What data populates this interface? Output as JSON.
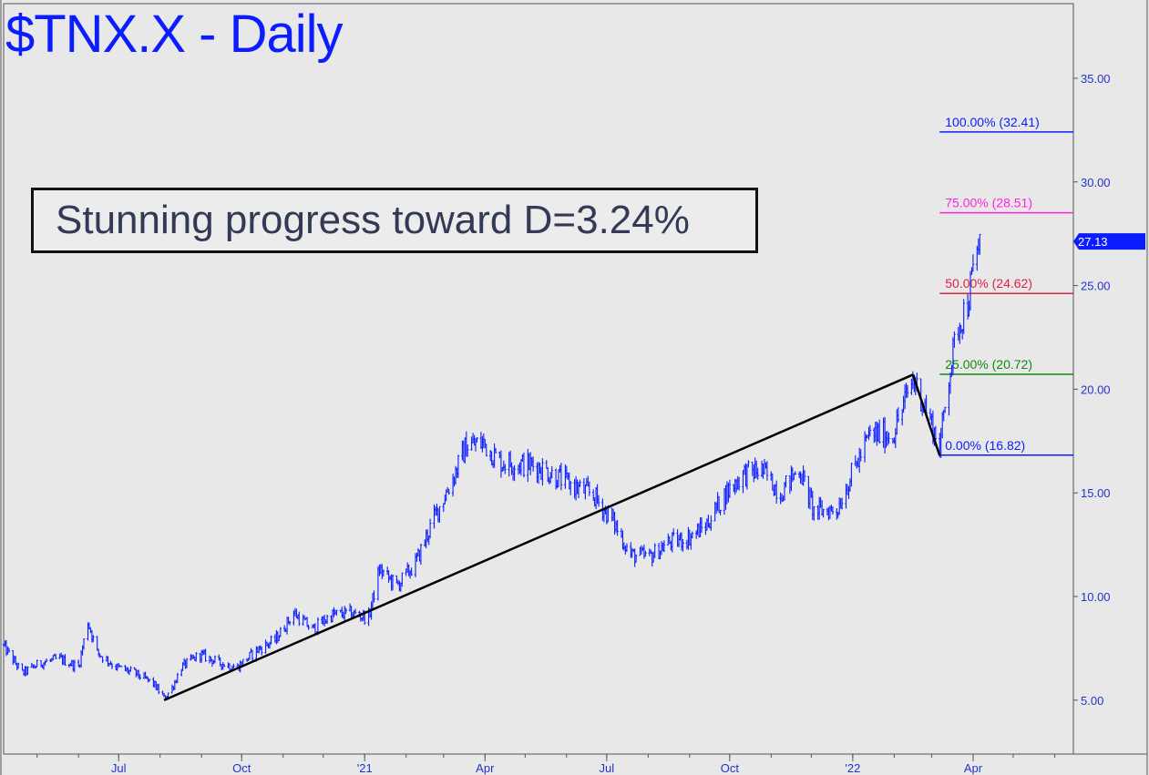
{
  "title": "$TNX.X - Daily",
  "annotation": "Stunning progress toward D=3.24%",
  "colors": {
    "background": "#e8e8e8",
    "price": "#0b1cff",
    "trendline": "#000000",
    "fib_100": "#0b1cff",
    "fib_75": "#ff22dd",
    "fib_50": "#dd2244",
    "fib_25": "#118811",
    "fib_0": "#0b1cff",
    "last_price_tag": "#0b1cff"
  },
  "chart_data": {
    "type": "line",
    "title": "$TNX.X - Daily",
    "xlabel": "",
    "ylabel": "",
    "x_axis": {
      "start": "2020-04-06",
      "end": "2022-06-15",
      "tick_labels": [
        {
          "label": "Jul",
          "date": "2020-07-01"
        },
        {
          "label": "Oct",
          "date": "2020-10-01"
        },
        {
          "label": "'21",
          "date": "2021-01-01"
        },
        {
          "label": "Apr",
          "date": "2021-04-01"
        },
        {
          "label": "Jul",
          "date": "2021-07-01"
        },
        {
          "label": "Oct",
          "date": "2021-10-01"
        },
        {
          "label": "'22",
          "date": "2022-01-01"
        },
        {
          "label": "Apr",
          "date": "2022-04-01"
        }
      ]
    },
    "y_axis": {
      "position": "right",
      "ylim": [
        2.4,
        38.6
      ],
      "ticks": [
        "5.00",
        "10.00",
        "15.00",
        "20.00",
        "25.00",
        "30.00",
        "35.00"
      ]
    },
    "grid": false,
    "last_price": {
      "value": 27.13,
      "label": "27.13"
    },
    "series": [
      {
        "points": [
          [
            "2020-04-06",
            7.6
          ],
          [
            "2020-04-20",
            6.3
          ],
          [
            "2020-05-04",
            6.8
          ],
          [
            "2020-05-18",
            7.0
          ],
          [
            "2020-06-01",
            6.6
          ],
          [
            "2020-06-08",
            8.8
          ],
          [
            "2020-06-15",
            7.3
          ],
          [
            "2020-06-29",
            6.6
          ],
          [
            "2020-07-13",
            6.3
          ],
          [
            "2020-07-27",
            5.8
          ],
          [
            "2020-08-04",
            5.1
          ],
          [
            "2020-08-10",
            5.6
          ],
          [
            "2020-08-17",
            6.6
          ],
          [
            "2020-08-31",
            7.2
          ],
          [
            "2020-09-14",
            6.8
          ],
          [
            "2020-09-28",
            6.6
          ],
          [
            "2020-10-12",
            7.4
          ],
          [
            "2020-10-26",
            7.9
          ],
          [
            "2020-11-09",
            9.2
          ],
          [
            "2020-11-23",
            8.4
          ],
          [
            "2020-12-07",
            9.1
          ],
          [
            "2020-12-21",
            9.2
          ],
          [
            "2021-01-04",
            9.0
          ],
          [
            "2021-01-12",
            11.3
          ],
          [
            "2021-01-25",
            10.5
          ],
          [
            "2021-02-08",
            11.6
          ],
          [
            "2021-02-22",
            13.8
          ],
          [
            "2021-03-08",
            15.7
          ],
          [
            "2021-03-18",
            17.3
          ],
          [
            "2021-03-31",
            17.4
          ],
          [
            "2021-04-12",
            16.5
          ],
          [
            "2021-04-26",
            16.4
          ],
          [
            "2021-05-10",
            16.3
          ],
          [
            "2021-05-24",
            15.8
          ],
          [
            "2021-06-07",
            15.3
          ],
          [
            "2021-06-21",
            14.9
          ],
          [
            "2021-07-06",
            13.6
          ],
          [
            "2021-07-19",
            12.0
          ],
          [
            "2021-08-02",
            11.9
          ],
          [
            "2021-08-16",
            12.6
          ],
          [
            "2021-08-30",
            12.8
          ],
          [
            "2021-09-13",
            13.4
          ],
          [
            "2021-09-27",
            14.9
          ],
          [
            "2021-10-11",
            15.9
          ],
          [
            "2021-10-25",
            16.1
          ],
          [
            "2021-11-08",
            15.0
          ],
          [
            "2021-11-22",
            16.2
          ],
          [
            "2021-12-03",
            14.1
          ],
          [
            "2021-12-20",
            14.2
          ],
          [
            "2022-01-03",
            16.3
          ],
          [
            "2022-01-14",
            17.8
          ],
          [
            "2022-01-31",
            17.8
          ],
          [
            "2022-02-15",
            20.5
          ],
          [
            "2022-02-23",
            19.4
          ],
          [
            "2022-03-07",
            17.2
          ],
          [
            "2022-03-14",
            20.7
          ],
          [
            "2022-03-21",
            23.1
          ],
          [
            "2022-03-28",
            24.2
          ],
          [
            "2022-04-06",
            27.3
          ]
        ]
      }
    ],
    "trendlines": [
      {
        "from": [
          "2020-08-04",
          5.0
        ],
        "to": [
          "2022-02-15",
          20.7
        ]
      },
      {
        "from": [
          "2022-02-15",
          20.7
        ],
        "to": [
          "2022-03-07",
          16.8
        ]
      }
    ],
    "fib_levels": [
      {
        "label": "100.00% (32.41)",
        "value": 32.41,
        "color": "#0b1cff"
      },
      {
        "label": "75.00% (28.51)",
        "value": 28.51,
        "color": "#ff22dd"
      },
      {
        "label": "50.00% (24.62)",
        "value": 24.62,
        "color": "#dd2244"
      },
      {
        "label": "25.00% (20.72)",
        "value": 20.72,
        "color": "#118811"
      },
      {
        "label": "0.00% (16.82)",
        "value": 16.82,
        "color": "#0b1cff"
      }
    ],
    "fib_start": "2022-03-07"
  }
}
